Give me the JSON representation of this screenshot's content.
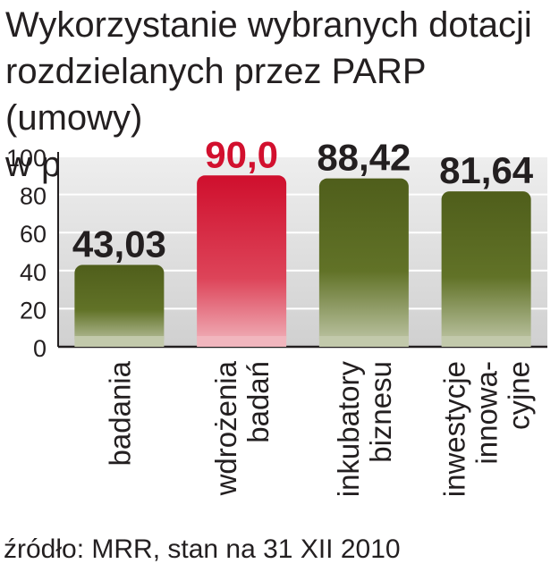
{
  "header": {
    "title_lines": [
      "Wykorzystanie wybranych dotacji",
      "rozdzielanych przez PARP (umowy)",
      "w proc."
    ]
  },
  "footer": {
    "source": "źródło: MRR, stan na 31 XII 2010"
  },
  "colors": {
    "bar": "#5a6b22",
    "highlight": "#d2102e",
    "grid": "#ffffff",
    "plot_bg": "#e0e0e0",
    "text": "#231f20"
  },
  "chart_data": {
    "type": "bar",
    "title": "Wykorzystanie wybranych dotacji rozdzielanych przez PARP (umowy) w proc.",
    "categories": [
      "badania",
      "wdrożenia badań",
      "inkubatory biznesu",
      "inwestycje innowa-cyjne"
    ],
    "category_lines": [
      [
        "badania"
      ],
      [
        "wdrożenia",
        "badań"
      ],
      [
        "inkubatory",
        "biznesu"
      ],
      [
        "inwestycje",
        "innowa-",
        "cyjne"
      ]
    ],
    "values": [
      43.03,
      90.0,
      88.42,
      81.64
    ],
    "value_labels": [
      "43,03",
      "90,0",
      "88,42",
      "81,64"
    ],
    "highlight_index": 1,
    "y_ticks": [
      "0",
      "20",
      "40",
      "60",
      "80",
      "100"
    ],
    "ylim": [
      0,
      100
    ],
    "xlabel": "",
    "ylabel": "",
    "grid": true
  }
}
